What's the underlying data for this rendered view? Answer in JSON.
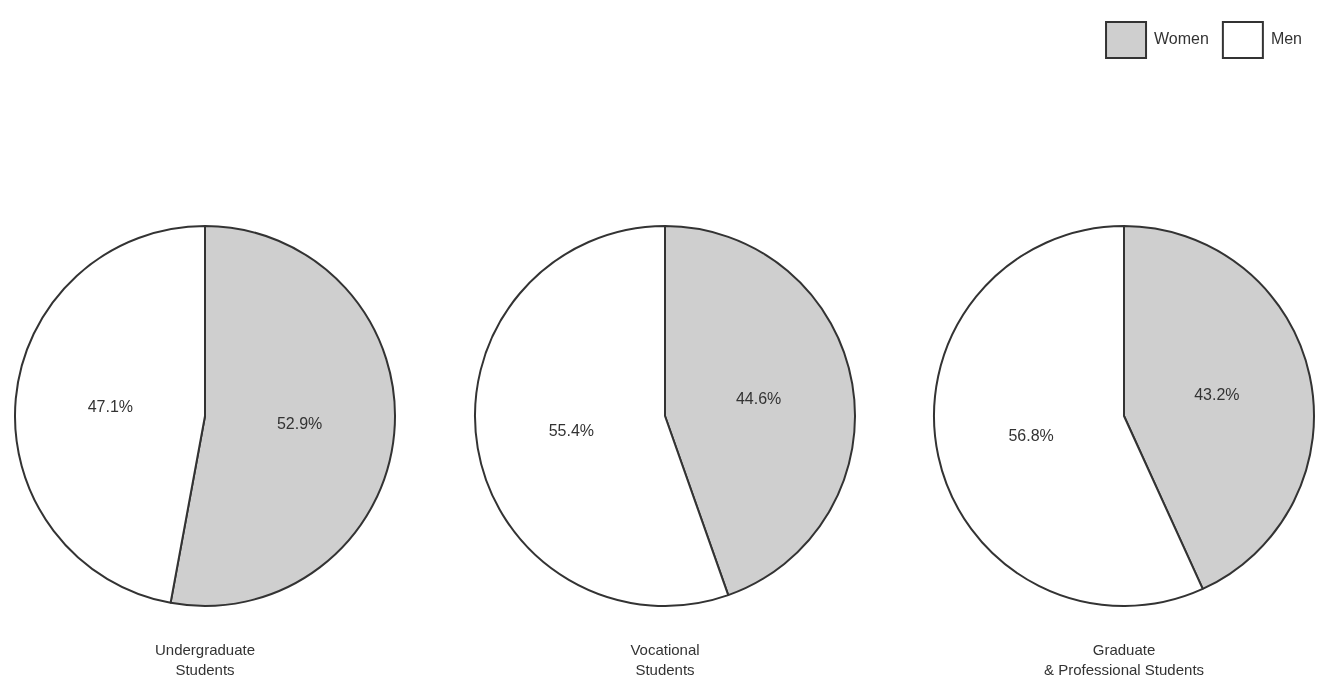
{
  "chart_data": [
    {
      "type": "pie",
      "title": "Undergraduate\nStudents",
      "categories": [
        null,
        null
      ],
      "values": [
        52.9,
        47.1
      ],
      "value_labels": [
        "52.9%",
        "47.1%"
      ],
      "colors": [
        "#cfcfcf",
        "#ffffff"
      ]
    },
    {
      "type": "pie",
      "title": "Vocational\nStudents",
      "categories": [
        null,
        null
      ],
      "values": [
        44.6,
        55.4
      ],
      "value_labels": [
        "44.6%",
        "55.4%"
      ],
      "colors": [
        "#cfcfcf",
        "#ffffff"
      ]
    },
    {
      "type": "pie",
      "title": "Graduate\n& Professional Students",
      "categories": [
        "Women",
        "Men"
      ],
      "values": [
        43.2,
        56.8
      ],
      "value_labels": [
        "43.2%",
        "56.8%"
      ],
      "colors": [
        "#cfcfcf",
        "#ffffff"
      ],
      "legend": "top right"
    }
  ]
}
